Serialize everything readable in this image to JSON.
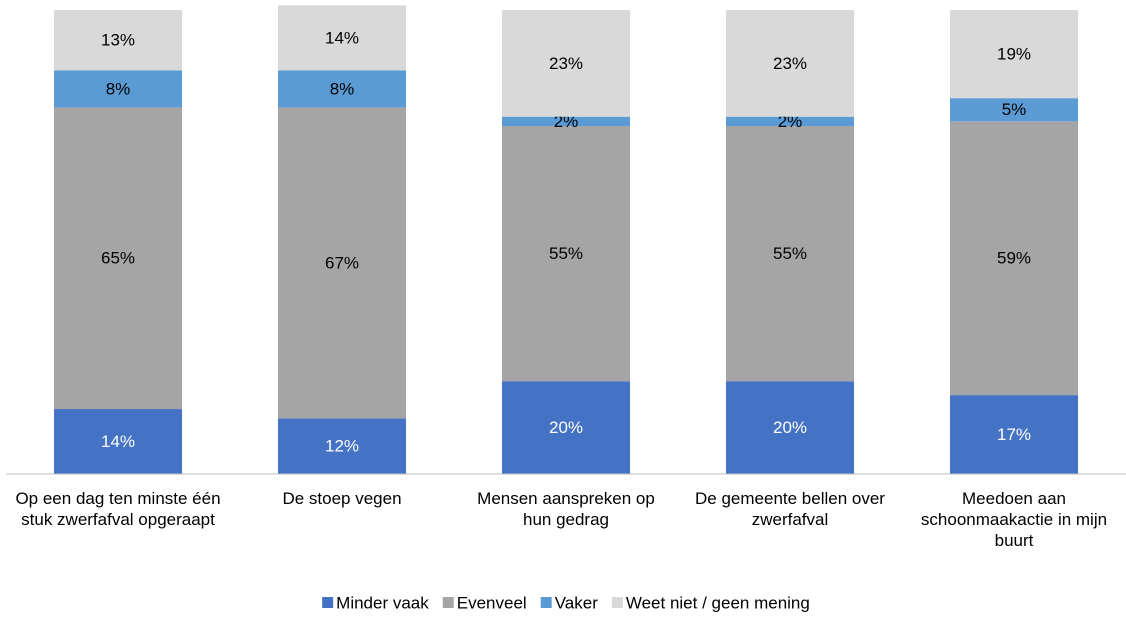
{
  "chart_data": {
    "type": "stacked_bar",
    "categories": [
      "Op een dag ten minste één stuk zwerfafval opgeraapt",
      "De stoep vegen",
      "Mensen aanspreken op hun gedrag",
      "De gemeente bellen over zwerfafval",
      "Meedoen aan schoonmaakactie in mijn buurt"
    ],
    "series": [
      {
        "name": "Minder vaak",
        "color": "#4472c4",
        "values": [
          14,
          12,
          20,
          20,
          17
        ],
        "value_labels": [
          "14%",
          "12%",
          "20%",
          "20%",
          "17%"
        ]
      },
      {
        "name": "Evenveel",
        "color": "#a5a5a5",
        "values": [
          65,
          67,
          55,
          55,
          59
        ],
        "value_labels": [
          "65%",
          "67%",
          "55%",
          "55%",
          "59%"
        ]
      },
      {
        "name": "Vaker",
        "color": "#5b9bd5",
        "values": [
          8,
          8,
          2,
          2,
          5
        ],
        "value_labels": [
          "8%",
          "8%",
          "2%",
          "2%",
          "5%"
        ]
      },
      {
        "name": "Weet niet / geen mening",
        "color": "#d9d9d9",
        "values": [
          13,
          14,
          23,
          23,
          19
        ],
        "value_labels": [
          "13%",
          "14%",
          "23%",
          "23%",
          "19%"
        ]
      }
    ],
    "ylim": [
      0,
      100
    ],
    "legend": "bottom"
  }
}
